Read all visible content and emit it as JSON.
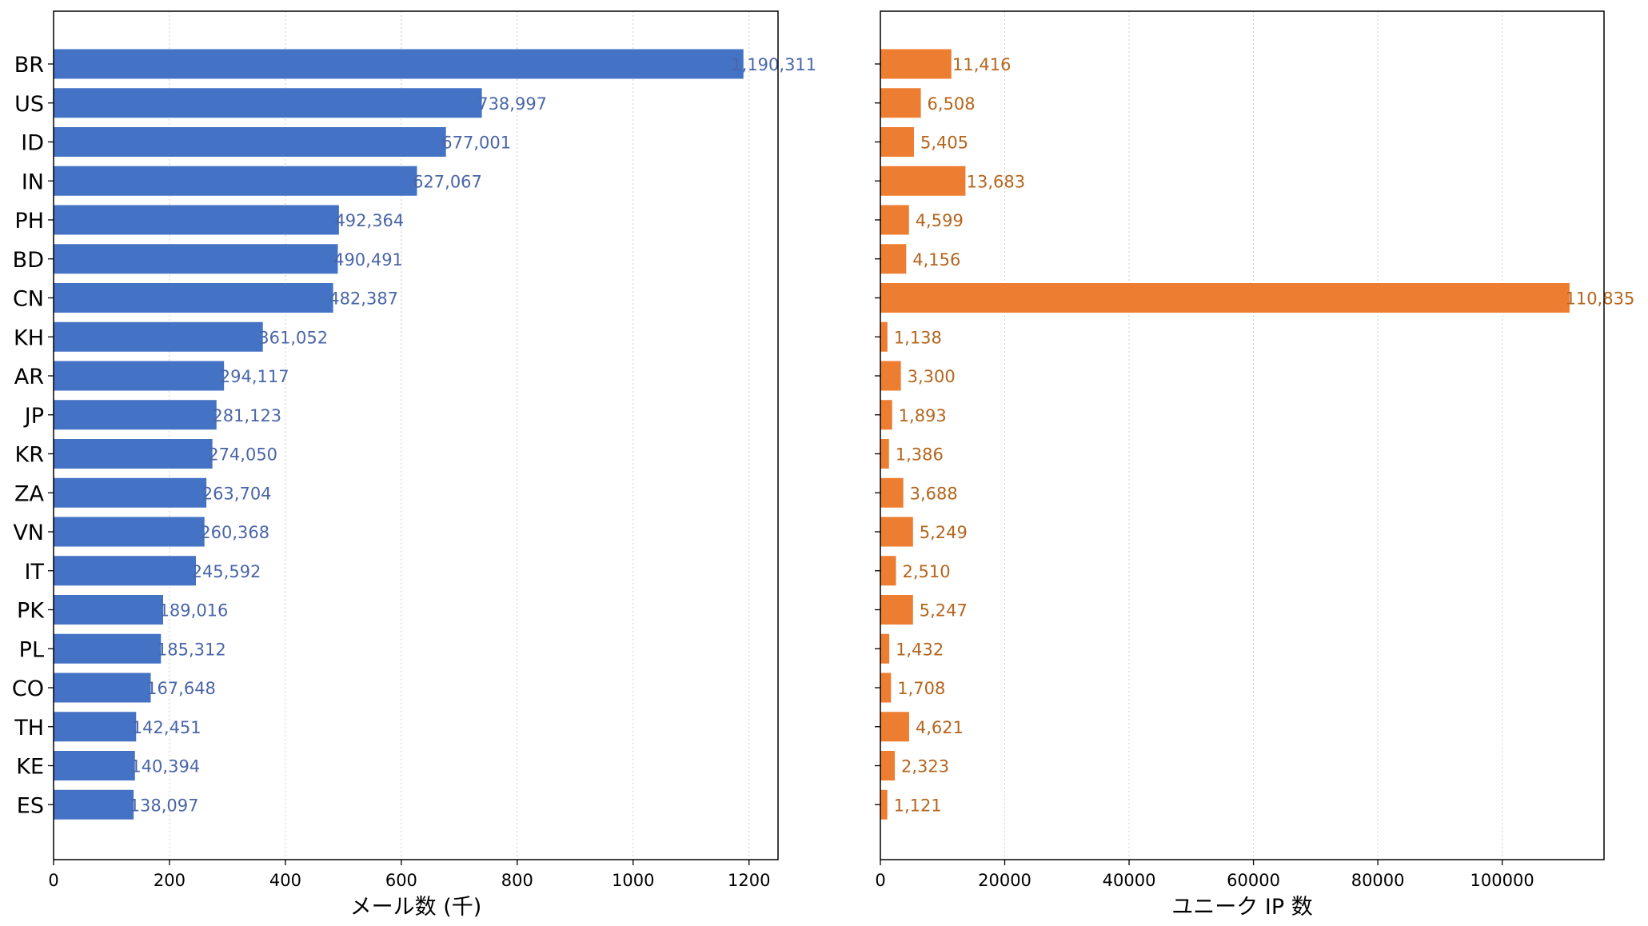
{
  "chart_data": [
    {
      "type": "bar",
      "orientation": "horizontal",
      "categories": [
        "BR",
        "US",
        "ID",
        "IN",
        "PH",
        "BD",
        "CN",
        "KH",
        "AR",
        "JP",
        "KR",
        "ZA",
        "VN",
        "IT",
        "PK",
        "PL",
        "CO",
        "TH",
        "KE",
        "ES"
      ],
      "values": [
        1190.311,
        738.997,
        677.001,
        627.067,
        492.364,
        490.491,
        482.387,
        361.052,
        294.117,
        281.123,
        274.05,
        263.704,
        260.368,
        245.592,
        189.016,
        185.312,
        167.648,
        142.451,
        140.394,
        138.097
      ],
      "data_labels": [
        "1,190,311",
        "738,997",
        "677,001",
        "627,067",
        "492,364",
        "490,491",
        "482,387",
        "361,052",
        "294,117",
        "281,123",
        "274,050",
        "263,704",
        "260,368",
        "245,592",
        "189,016",
        "185,312",
        "167,648",
        "142,451",
        "140,394",
        "138,097"
      ],
      "xlabel": "メール数 (千)",
      "ylabel": "",
      "title": "",
      "xlim": [
        0,
        1250
      ],
      "xticks": [
        0,
        200,
        400,
        600,
        800,
        1000,
        1200
      ],
      "xtick_labels": [
        "0",
        "200",
        "400",
        "600",
        "800",
        "1000",
        "1200"
      ],
      "grid": "x, dotted",
      "bar_color": "#4472c4",
      "label_color": "#4a66a8"
    },
    {
      "type": "bar",
      "orientation": "horizontal",
      "categories": [
        "BR",
        "US",
        "ID",
        "IN",
        "PH",
        "BD",
        "CN",
        "KH",
        "AR",
        "JP",
        "KR",
        "ZA",
        "VN",
        "IT",
        "PK",
        "PL",
        "CO",
        "TH",
        "KE",
        "ES"
      ],
      "values": [
        11416,
        6508,
        5405,
        13683,
        4599,
        4156,
        110835,
        1138,
        3300,
        1893,
        1386,
        3688,
        5249,
        2510,
        5247,
        1432,
        1708,
        4621,
        2323,
        1121
      ],
      "data_labels": [
        "11,416",
        "6,508",
        "5,405",
        "13,683",
        "4,599",
        "4,156",
        "110,835",
        "1,138",
        "3,300",
        "1,893",
        "1,386",
        "3,688",
        "5,249",
        "2,510",
        "5,247",
        "1,432",
        "1,708",
        "4,621",
        "2,323",
        "1,121"
      ],
      "xlabel": "ユニーク IP 数",
      "ylabel": "",
      "title": "",
      "xlim": [
        0,
        116377
      ],
      "xticks": [
        0,
        20000,
        40000,
        60000,
        80000,
        100000
      ],
      "xtick_labels": [
        "0",
        "20000",
        "40000",
        "60000",
        "80000",
        "100000"
      ],
      "grid": "x, dotted",
      "bar_color": "#ed7d31",
      "label_color": "#b5651d"
    }
  ]
}
